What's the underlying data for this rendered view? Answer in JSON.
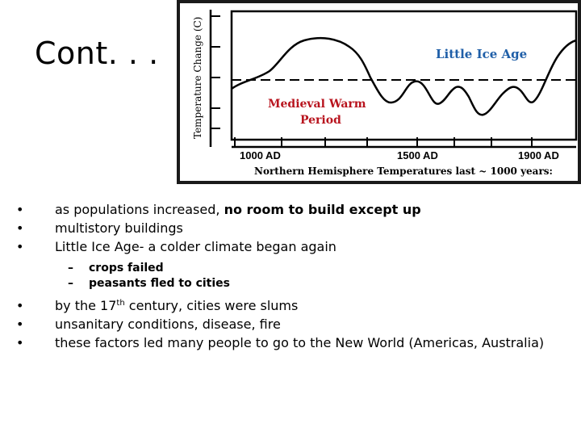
{
  "slide": {
    "title": "Cont. . ."
  },
  "figure": {
    "y_axis_label": "Temperature Change (C)",
    "label_little_ice_age": "Little Ice Age",
    "label_medieval_1": "Medieval Warm",
    "label_medieval_2": "Period",
    "x_ticks": [
      "1000 AD",
      "1500 AD",
      "1900 AD"
    ],
    "caption": "Northern Hemisphere Temperatures last ~ 1000 years:",
    "colors": {
      "little_ice_age": "#1f5fa8",
      "medieval": "#b8141e",
      "line": "#000000",
      "frame": "#1a1a1a"
    }
  },
  "bullets": {
    "b1_normal": "as populations increased, ",
    "b1_bold": "no room to build except up",
    "b2": "multistory buildings",
    "b3": "Little Ice Age- a colder climate began again",
    "sub1": "crops failed",
    "sub2": "peasants fled to cities",
    "b4_pre": "by the 17",
    "b4_sup": "th",
    "b4_post": " century, cities were slums",
    "b5": "unsanitary conditions, disease, fire",
    "b6": "these factors led many people to go to the New World (Americas, Australia)"
  }
}
